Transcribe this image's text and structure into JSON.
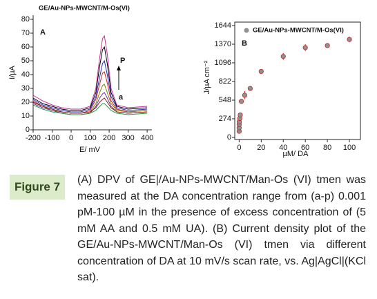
{
  "chart_data": [
    {
      "type": "line",
      "title": "GE/Au-NPs-MWCNT/M-Os(VI)",
      "panel": "A",
      "xlabel": "E/ mV",
      "ylabel": "I/µA",
      "annotations": [
        "P",
        "a"
      ],
      "x": [
        -200,
        -150,
        -100,
        -50,
        0,
        50,
        100,
        130,
        150,
        165,
        175,
        190,
        210,
        240,
        300,
        400
      ],
      "series": [
        {
          "color": "#c0309a",
          "values": [
            25,
            21,
            18,
            16,
            15,
            15,
            17,
            30,
            52,
            66,
            68,
            55,
            30,
            18,
            16,
            17
          ]
        },
        {
          "color": "#000000",
          "values": [
            23,
            19,
            17,
            15,
            14,
            14,
            16,
            27,
            46,
            58,
            60,
            48,
            27,
            17,
            15,
            16
          ]
        },
        {
          "color": "#2030c0",
          "values": [
            22,
            18,
            16,
            14,
            13,
            13,
            15,
            24,
            38,
            48,
            50,
            40,
            24,
            16,
            14,
            15
          ]
        },
        {
          "color": "#d02020",
          "values": [
            21,
            17,
            15,
            13,
            12,
            12,
            14,
            22,
            33,
            41,
            42,
            34,
            21,
            15,
            13,
            14
          ]
        },
        {
          "color": "#808000",
          "values": [
            20,
            17,
            14,
            13,
            12,
            12,
            13,
            19,
            27,
            32,
            33,
            27,
            19,
            14,
            13,
            14
          ]
        },
        {
          "color": "#7030a0",
          "values": [
            19,
            16,
            14,
            12,
            11,
            11,
            12,
            17,
            23,
            26,
            27,
            23,
            17,
            13,
            12,
            13
          ]
        },
        {
          "color": "#8b1a1a",
          "values": [
            20,
            17,
            15,
            13,
            12,
            12,
            13,
            16,
            20,
            22,
            23,
            20,
            16,
            13,
            12,
            13
          ]
        },
        {
          "color": "#20a040",
          "values": [
            18,
            15,
            13,
            12,
            11,
            11,
            12,
            14,
            17,
            19,
            19,
            17,
            14,
            12,
            11,
            12
          ]
        }
      ],
      "xlim": [
        -200,
        425
      ],
      "ylim": [
        0,
        80
      ],
      "xticks": [
        -200,
        -100,
        0,
        100,
        200,
        300,
        400
      ],
      "yticks": [
        0,
        10,
        20,
        30,
        40,
        50,
        60,
        70,
        80
      ]
    },
    {
      "type": "scatter",
      "title": "GE/Au-NPs-MWCNT/M-Os(VI)",
      "panel": "B",
      "xlabel": "µM/ DA",
      "ylabel": "J/µA cm⁻²",
      "color": "#d02020",
      "legend_color": "#909090",
      "x": [
        0.001,
        0.01,
        0.05,
        0.1,
        0.5,
        1,
        2,
        5,
        10,
        20,
        40,
        60,
        80,
        100
      ],
      "values": [
        90,
        140,
        190,
        230,
        280,
        330,
        530,
        620,
        720,
        970,
        1190,
        1320,
        1350,
        1440
      ],
      "errors": [
        10,
        10,
        10,
        10,
        15,
        15,
        20,
        60,
        20,
        30,
        50,
        50,
        30,
        40
      ],
      "xlim": [
        -4,
        110
      ],
      "ylim": [
        0,
        1644
      ],
      "xticks": [
        0,
        20,
        40,
        60,
        80,
        100
      ],
      "yticks": [
        0,
        274,
        548,
        822,
        1096,
        1370,
        1644
      ]
    }
  ],
  "figure": {
    "label": "Figure 7",
    "caption": "(A) DPV of GE|/Au-NPs-MWCNT/Man-Os (VI) tmen was measured at the DA concentration range from (a-p) 0.001 pM-100 µM in the presence of excess concentration of (5 mM AA and 0.5 mM UA). (B) Current density plot of the GE/Au-NPs-MWCNT/Man-Os (VI) tmen via different concentration of DA at 10 mV/s scan rate, vs. Ag|AgCl|(KCl sat)."
  }
}
